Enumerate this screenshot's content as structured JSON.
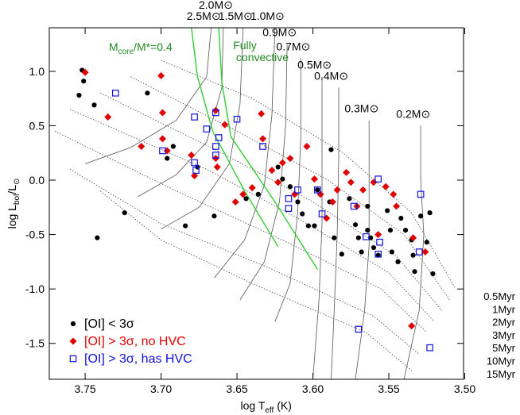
{
  "chart_data": {
    "type": "scatter",
    "x_label": [
      "log T",
      "eff",
      " (K)"
    ],
    "y_label": [
      "log L",
      "bol",
      "/L",
      "⊙"
    ],
    "xlim": [
      3.7736,
      3.5008
    ],
    "ylim": [
      -1.83,
      1.4
    ],
    "xticks": [
      3.75,
      {
        "value": 3.7,
        "label": "3.70"
      },
      3.65,
      {
        "value": 3.6,
        "label": "3.60"
      },
      3.55,
      {
        "value": 3.5,
        "label": "3.50"
      }
    ],
    "yticks": [
      {
        "value": 1,
        "label": "1.0"
      },
      0.5,
      {
        "value": 0,
        "label": "0.0"
      },
      -0.5,
      {
        "value": -1,
        "label": "-1.0"
      },
      -1.5
    ],
    "legend": "lower left",
    "series": [
      {
        "name": "[OI] < 3σ",
        "color": "#000000",
        "marker": "circle",
        "x": [
          3.564,
          3.564,
          3.562,
          3.56,
          3.557,
          3.572,
          3.57,
          3.568,
          3.551,
          3.549,
          3.548,
          3.544,
          3.542,
          3.539,
          3.535,
          3.534,
          3.533,
          3.529,
          3.525,
          3.521,
          3.523,
          3.588,
          3.576,
          3.589,
          3.597,
          3.599,
          3.742,
          3.752,
          3.751,
          3.754,
          3.744,
          3.709,
          3.724,
          3.684,
          3.692,
          3.696,
          3.676,
          3.665,
          3.644,
          3.636,
          3.623,
          3.62,
          3.615,
          3.61,
          3.607,
          3.603,
          3.586,
          3.581
        ],
        "y": [
          -0.24,
          -0.46,
          -0.53,
          -0.62,
          -0.69,
          -0.41,
          -0.53,
          -0.66,
          -0.28,
          -0.46,
          -0.66,
          -0.75,
          -0.35,
          -0.46,
          -0.55,
          -0.69,
          -0.84,
          -0.33,
          -0.57,
          -0.86,
          -0.3,
          0.28,
          -0.17,
          -0.2,
          -0.09,
          -0.42,
          -0.53,
          1.01,
          0.91,
          0.78,
          0.69,
          0.8,
          -0.3,
          -0.42,
          0.31,
          0.2,
          0.12,
          -0.33,
          -0.17,
          -0.13,
          0.12,
          0.01,
          -0.06,
          -0.2,
          -0.31,
          -0.42,
          -0.53,
          -0.68
        ]
      },
      {
        "name": "[OI] > 3σ, no HVC",
        "color": "#e00000",
        "marker": "diamond",
        "x": [
          3.75,
          3.735,
          3.7,
          3.699,
          3.713,
          3.699,
          3.696,
          3.68,
          3.678,
          3.664,
          3.658,
          3.663,
          3.664,
          3.651,
          3.646,
          3.64,
          3.634,
          3.633,
          3.627,
          3.623,
          3.62,
          3.615,
          3.612,
          3.604,
          3.599,
          3.595,
          3.591,
          3.587,
          3.584,
          3.578,
          3.575,
          3.571,
          3.567,
          3.56,
          3.557,
          3.552,
          3.547,
          3.545,
          3.535,
          3.534,
          3.526
        ],
        "y": [
          0.99,
          0.58,
          0.96,
          0.62,
          0.31,
          0.38,
          0.27,
          0.23,
          0.04,
          0.64,
          0.51,
          0.12,
          0.2,
          -0.2,
          -0.13,
          -0.07,
          0.61,
          0.38,
          0.09,
          -0.02,
          0.16,
          0.2,
          -0.13,
          0.31,
          0.01,
          -0.13,
          -0.35,
          -0.2,
          -0.09,
          0.07,
          -0.02,
          -0.24,
          -0.09,
          -0.02,
          -0.5,
          -0.06,
          -0.13,
          -0.24,
          -1.34,
          -0.53,
          -0.66
        ]
      },
      {
        "name": "[OI] > 3σ, has HVC",
        "color": "#1010e0",
        "marker": "square",
        "x": [
          3.73,
          3.699,
          3.678,
          3.678,
          3.677,
          3.67,
          3.664,
          3.664,
          3.662,
          3.664,
          3.65,
          3.633,
          3.616,
          3.616,
          3.61,
          3.597,
          3.594,
          3.573,
          3.57,
          3.556,
          3.565,
          3.557,
          3.557,
          3.53,
          3.529,
          3.523
        ],
        "y": [
          0.8,
          0.27,
          0.58,
          0.16,
          0.09,
          0.47,
          0.62,
          0.31,
          0.39,
          0.23,
          0.56,
          0.31,
          -0.17,
          -0.26,
          -0.09,
          -0.09,
          -0.31,
          -0.24,
          -1.37,
          -0.57,
          -0.52,
          -0.68,
          0.01,
          -0.66,
          -0.13,
          -1.54
        ]
      }
    ],
    "tracks": [
      {
        "label": "2.5M⊙",
        "x": [
          3.667,
          3.67,
          3.69,
          3.72,
          3.75
        ],
        "y": [
          1.4,
          0.95,
          0.55,
          0.3,
          0.15
        ]
      },
      {
        "label": "2.0M⊙",
        "x": [
          3.659,
          3.66,
          3.67,
          3.69,
          3.715
        ],
        "y": [
          1.4,
          0.85,
          0.35,
          0.05,
          -0.15
        ]
      },
      {
        "label": "1.5M⊙",
        "x": [
          3.646,
          3.648,
          3.655,
          3.675,
          3.7
        ],
        "y": [
          1.4,
          0.7,
          0.15,
          -0.25,
          -0.45
        ]
      },
      {
        "label": "1.0M⊙",
        "x": [
          3.625,
          3.627,
          3.632,
          3.645,
          3.665
        ],
        "y": [
          1.4,
          0.6,
          -0.05,
          -0.55,
          -0.9
        ]
      },
      {
        "label": "0.9M⊙",
        "x": [
          3.617,
          3.618,
          3.622,
          3.632,
          3.648
        ],
        "y": [
          1.25,
          0.5,
          -0.2,
          -0.75,
          -1.1
        ]
      },
      {
        "label": "0.7M⊙",
        "x": [
          3.608,
          3.608,
          3.61,
          3.615,
          3.625
        ],
        "y": [
          1.12,
          0.4,
          -0.3,
          -0.95,
          -1.3
        ]
      },
      {
        "label": "0.5M⊙",
        "x": [
          3.594,
          3.594,
          3.594,
          3.596,
          3.6
        ],
        "y": [
          0.95,
          0.3,
          -0.4,
          -1.1,
          -1.83
        ]
      },
      {
        "label": "0.4M⊙",
        "x": [
          3.583,
          3.583,
          3.584,
          3.586,
          3.588
        ],
        "y": [
          0.85,
          0.2,
          -0.5,
          -1.2,
          -1.83
        ]
      },
      {
        "label": "0.3M⊙",
        "x": [
          3.563,
          3.563,
          3.563,
          3.566,
          3.572
        ],
        "y": [
          0.55,
          0.0,
          -0.6,
          -1.2,
          -1.83
        ]
      },
      {
        "label": "0.2M⊙",
        "x": [
          3.529,
          3.529,
          3.527,
          3.53,
          3.54
        ],
        "y": [
          0.5,
          0.0,
          -0.5,
          -1.2,
          -1.83
        ]
      }
    ],
    "isochrones": [
      {
        "label": "0.5Myr",
        "x": [
          3.7,
          3.64,
          3.58,
          3.535,
          3.506
        ],
        "y": [
          1.1,
          0.75,
          0.25,
          -0.3,
          -1.0
        ]
      },
      {
        "label": "1Myr",
        "x": [
          3.72,
          3.65,
          3.59,
          3.54,
          3.51
        ],
        "y": [
          0.95,
          0.45,
          0.0,
          -0.5,
          -1.1
        ]
      },
      {
        "label": "2Myr",
        "x": [
          3.74,
          3.66,
          3.6,
          3.545,
          3.515
        ],
        "y": [
          0.8,
          0.25,
          -0.2,
          -0.7,
          -1.2
        ]
      },
      {
        "label": "3Myr",
        "x": [
          3.76,
          3.67,
          3.61,
          3.55,
          3.52
        ],
        "y": [
          0.65,
          0.1,
          -0.35,
          -0.85,
          -1.3
        ]
      },
      {
        "label": "5Myr",
        "x": [
          3.77,
          3.69,
          3.62,
          3.555,
          3.525
        ],
        "y": [
          0.45,
          -0.1,
          -0.55,
          -1.0,
          -1.4
        ]
      },
      {
        "label": "10Myr",
        "x": [
          3.76,
          3.7,
          3.63,
          3.56,
          3.53
        ],
        "y": [
          0.1,
          -0.4,
          -0.8,
          -1.25,
          -1.6
        ]
      },
      {
        "label": "15Myr",
        "x": [
          3.74,
          3.7,
          3.64,
          3.565,
          3.535
        ],
        "y": [
          -0.1,
          -0.55,
          -0.95,
          -1.4,
          -1.75
        ]
      }
    ],
    "boundaries": [
      {
        "label_parts": [
          "M",
          "core",
          "/M*=0.4"
        ],
        "color": "#228b22",
        "x": [
          3.68,
          3.676,
          3.666,
          3.645,
          3.623
        ],
        "y": [
          1.4,
          0.95,
          0.45,
          -0.1,
          -0.61
        ]
      },
      {
        "label_lines": [
          "Fully",
          "convective"
        ],
        "color": "#228b22",
        "x": [
          3.662,
          3.66,
          3.654,
          3.625,
          3.597
        ],
        "y": [
          1.4,
          0.9,
          0.4,
          -0.2,
          -0.82
        ]
      }
    ]
  }
}
